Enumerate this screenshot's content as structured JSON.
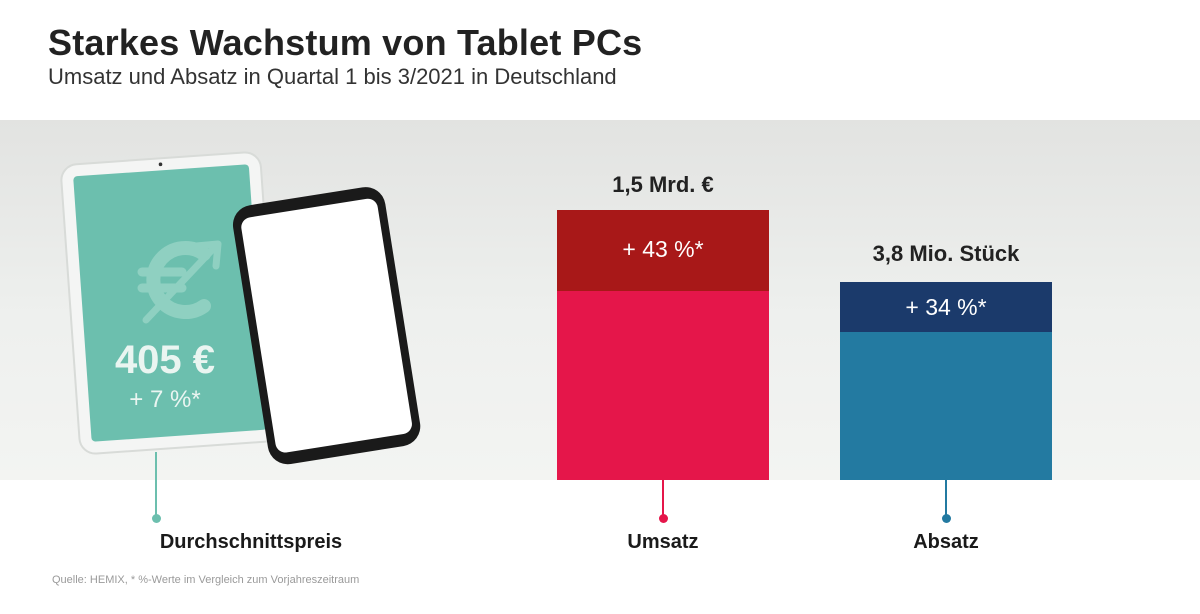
{
  "title": "Starkes Wachstum von Tablet PCs",
  "subtitle": "Umsatz und Absatz in Quartal 1 bis 3/2021 in Deutschland",
  "footnote": "Quelle: HEMIX, * %-Werte im Vergleich zum Vorjahreszeitraum",
  "colors": {
    "teal": "#6cbfae",
    "umsatz_prev": "#e5164a",
    "umsatz_growth": "#a81818",
    "absatz_prev": "#237aa1",
    "absatz_growth": "#1b3a6b",
    "band": "#e8e9e7"
  },
  "icons": {
    "price_icon": "euro-growth-arrow-icon",
    "tablet": "tablet-device",
    "phone": "smartphone-device"
  },
  "chart_data": {
    "type": "bar",
    "title": "Starkes Wachstum von Tablet PCs",
    "subtitle": "Umsatz und Absatz in Quartal 1 bis 3/2021 in Deutschland",
    "categories": [
      "Durchschnittspreis",
      "Umsatz",
      "Absatz"
    ],
    "average_price": {
      "label": "Durchschnittspreis",
      "value": 405,
      "display": "405 €",
      "change_pct": 7,
      "change_label": "+ 7 %*"
    },
    "bars": [
      {
        "label": "Umsatz",
        "value": 1.5,
        "unit": "Mrd. €",
        "display": "1,5 Mrd. €",
        "change_pct": 43,
        "change_label": "+ 43 %*"
      },
      {
        "label": "Absatz",
        "value": 3.8,
        "unit": "Mio. Stück",
        "display": "3,8 Mio. Stück",
        "change_pct": 34,
        "change_label": "+ 34 %*"
      }
    ],
    "grid": false,
    "legend": "none"
  }
}
